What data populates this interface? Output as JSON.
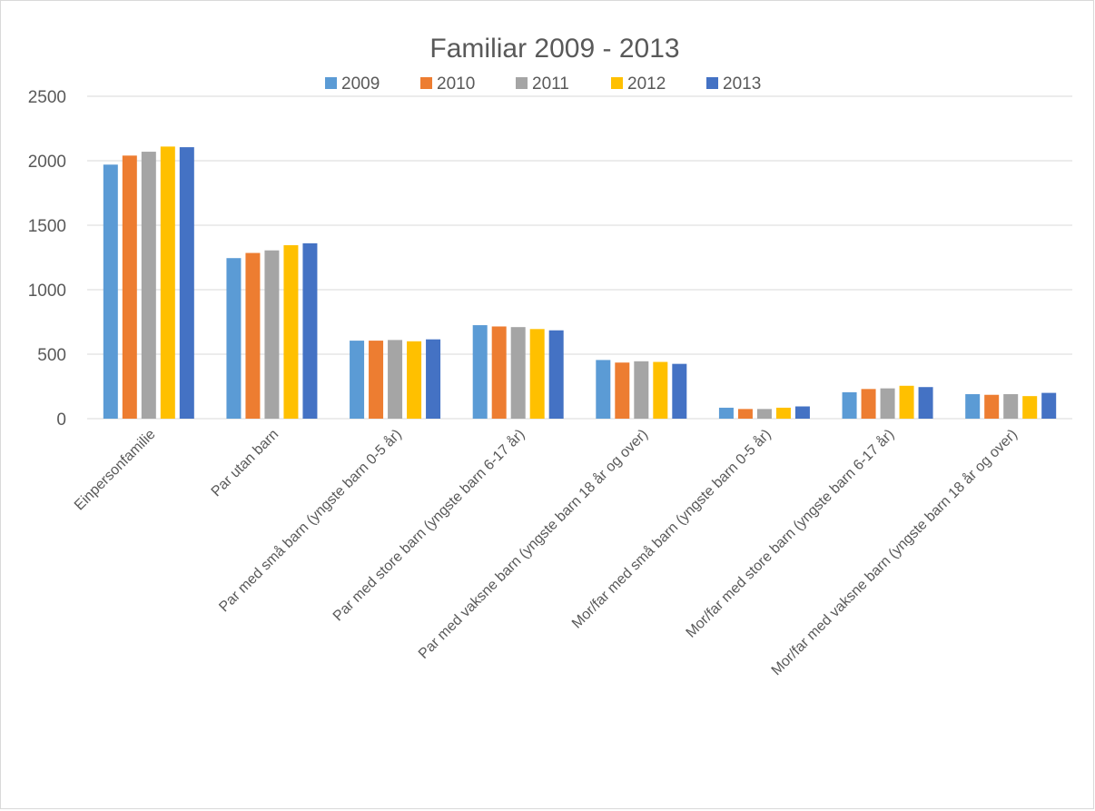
{
  "chart_data": {
    "type": "bar",
    "title": "Familiar 2009 - 2013",
    "xlabel": "",
    "ylabel": "",
    "ylim": [
      0,
      2500
    ],
    "yticks": [
      0,
      500,
      1000,
      1500,
      2000,
      2500
    ],
    "grid": true,
    "legend": "top",
    "categories": [
      "Einpersonfamilie",
      "Par utan barn",
      "Par med små barn (yngste barn 0-5 år)",
      "Par med store barn (yngste barn 6-17 år)",
      "Par med vaksne barn (yngste barn 18 år og over)",
      "Mor/far med små barn (yngste barn 0-5 år)",
      "Mor/far med store barn (yngste barn 6-17 år)",
      "Mor/far med vaksne barn (yngste barn 18 år og over)"
    ],
    "series": [
      {
        "name": "2009",
        "color": "#5b9bd5",
        "values": [
          1970,
          1245,
          605,
          725,
          455,
          85,
          205,
          190
        ]
      },
      {
        "name": "2010",
        "color": "#ed7d31",
        "values": [
          2040,
          1285,
          605,
          715,
          435,
          75,
          230,
          185
        ]
      },
      {
        "name": "2011",
        "color": "#a5a5a5",
        "values": [
          2070,
          1305,
          610,
          710,
          445,
          75,
          235,
          190
        ]
      },
      {
        "name": "2012",
        "color": "#ffc000",
        "values": [
          2110,
          1345,
          600,
          695,
          440,
          85,
          255,
          175
        ]
      },
      {
        "name": "2013",
        "color": "#4472c4",
        "values": [
          2105,
          1360,
          615,
          685,
          425,
          95,
          245,
          200
        ]
      }
    ]
  }
}
